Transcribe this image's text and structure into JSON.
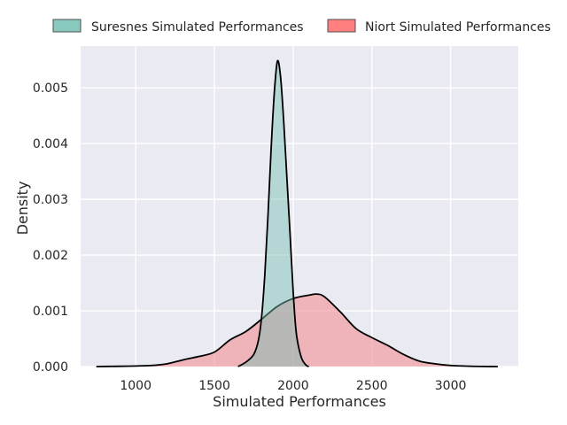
{
  "chart_data": {
    "type": "area",
    "xlabel": "Simulated Performances",
    "ylabel": "Density",
    "xlim": [
      650,
      3430
    ],
    "ylim": [
      0,
      0.00575
    ],
    "xticks": [
      1000,
      1500,
      2000,
      2500,
      3000
    ],
    "yticks": [
      0.0,
      0.001,
      0.002,
      0.003,
      0.004,
      0.005
    ],
    "ytick_labels": [
      "0.000",
      "0.001",
      "0.002",
      "0.003",
      "0.004",
      "0.005"
    ],
    "grid": true,
    "legend_position": "top",
    "background_color": "#eaeaf2",
    "series": [
      {
        "name": "Suresnes Simulated Performances",
        "fill_color": "#73bfb1",
        "fill_opacity": 0.45,
        "legend_color": "#88c9bd",
        "x": [
          1650,
          1700,
          1750,
          1780,
          1800,
          1820,
          1840,
          1860,
          1880,
          1900,
          1920,
          1940,
          1960,
          1980,
          2000,
          2020,
          2050,
          2080,
          2100
        ],
        "values": [
          0.0,
          8e-05,
          0.00022,
          0.00048,
          0.0009,
          0.00165,
          0.0027,
          0.0039,
          0.0049,
          0.00548,
          0.0052,
          0.0044,
          0.0034,
          0.0024,
          0.00135,
          0.0006,
          0.00018,
          3e-05,
          0.0
        ]
      },
      {
        "name": "Niort Simulated Performances",
        "fill_color": "#f28e95",
        "fill_opacity": 0.6,
        "legend_color": "#ff7f7f",
        "x": [
          750,
          900,
          1000,
          1100,
          1200,
          1300,
          1400,
          1500,
          1600,
          1700,
          1800,
          1900,
          2000,
          2100,
          2150,
          2200,
          2300,
          2400,
          2500,
          2600,
          2700,
          2800,
          2900,
          3000,
          3100,
          3200,
          3300
        ],
        "values": [
          0.0,
          5e-06,
          1e-05,
          2e-05,
          5e-05,
          0.00012,
          0.00018,
          0.00026,
          0.00048,
          0.00063,
          0.00085,
          0.00108,
          0.00122,
          0.00128,
          0.0013,
          0.00125,
          0.00098,
          0.00068,
          0.00052,
          0.00038,
          0.00022,
          0.0001,
          5e-05,
          2e-05,
          8e-06,
          2e-06,
          0.0
        ]
      }
    ]
  }
}
